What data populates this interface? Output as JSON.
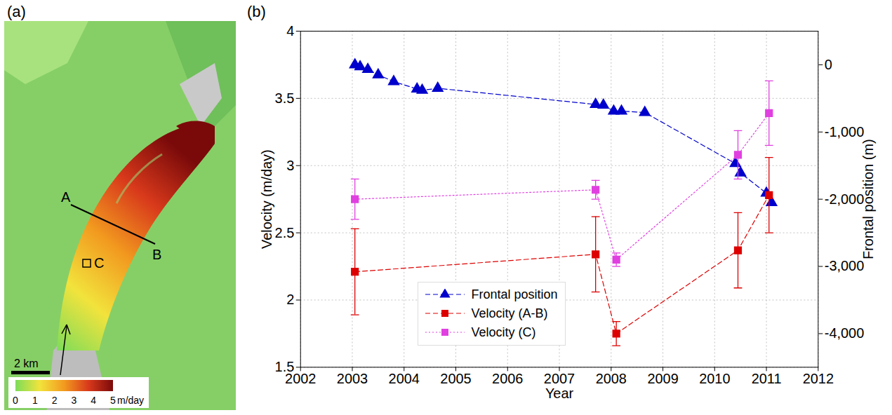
{
  "chart_data": [
    {
      "type": "map",
      "title": "(a)",
      "labels": [
        "A",
        "B",
        "C"
      ],
      "scale_bar": "2 km",
      "colorbar": {
        "label": "m/day",
        "range": [
          0,
          5
        ],
        "ticks": [
          0,
          1,
          2,
          3,
          4,
          5
        ],
        "colors": [
          "#7ddc5a",
          "#f2e33c",
          "#f29a1f",
          "#d8391b",
          "#7a0a0a"
        ]
      }
    },
    {
      "type": "line",
      "title": "(b)",
      "xlabel": "Year",
      "ylabel": "Velocity (m/day)",
      "y2label": "Frontal position (m)",
      "xlim": [
        2002,
        2012
      ],
      "xticks": [
        2002,
        2003,
        2004,
        2005,
        2006,
        2007,
        2008,
        2009,
        2010,
        2011,
        2012
      ],
      "ylim": [
        1.5,
        4
      ],
      "yticks": [
        1.5,
        2,
        2.5,
        3,
        3.5,
        4
      ],
      "y2lim": [
        -4500,
        500
      ],
      "y2ticks": [
        {
          "value": -4000,
          "label": "-4,000"
        },
        {
          "value": -3000,
          "label": "-3,000"
        },
        {
          "value": -2000,
          "label": "-2,000"
        },
        {
          "value": -1000,
          "label": "-1,000"
        },
        0
      ],
      "grid": true,
      "legend": "bottom",
      "series": [
        {
          "name": "Frontal position",
          "color": "#0000cc",
          "axis": "y2",
          "marker": "triangle",
          "line_style": "dashed",
          "x": [
            2003.05,
            2003.15,
            2003.3,
            2003.5,
            2003.8,
            2004.25,
            2004.35,
            2004.65,
            2007.7,
            2007.85,
            2008.05,
            2008.2,
            2008.65,
            2010.4,
            2010.5,
            2011.0,
            2011.1
          ],
          "values": [
            0,
            -30,
            -70,
            -150,
            -250,
            -360,
            -380,
            -350,
            -590,
            -600,
            -690,
            -690,
            -710,
            -1470,
            -1610,
            -1910,
            -2050
          ]
        },
        {
          "name": "Velocity (A-B)",
          "color": "#dd0000",
          "marker": "square",
          "line_style": "dashed",
          "x": [
            2003.05,
            2007.7,
            2008.1,
            2010.45,
            2011.05
          ],
          "values": [
            2.21,
            2.34,
            1.75,
            2.37,
            2.78
          ],
          "error": [
            0.32,
            0.28,
            0.09,
            0.28,
            0.28
          ]
        },
        {
          "name": "Velocity (C)",
          "color": "#e040e0",
          "marker": "square",
          "line_style": "dotted",
          "x": [
            2003.05,
            2007.7,
            2008.1,
            2010.45,
            2011.05
          ],
          "values": [
            2.75,
            2.82,
            2.3,
            3.08,
            3.39
          ],
          "error": [
            0.15,
            0.07,
            0.05,
            0.18,
            0.24
          ]
        }
      ]
    }
  ]
}
